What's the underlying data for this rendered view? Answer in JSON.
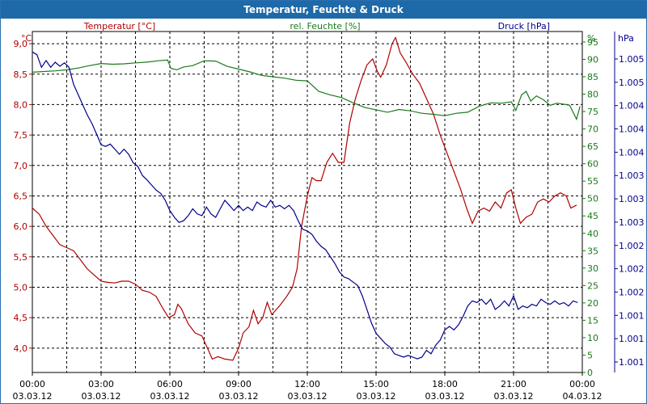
{
  "window": {
    "title": "Temperatur, Feuchte & Druck"
  },
  "chart_data": {
    "type": "line",
    "title": "Temperatur, Feuchte & Druck",
    "colors": {
      "temperature": "#b00000",
      "humidity": "#1a7a1a",
      "pressure": "#00008b"
    },
    "x_ticks": [
      {
        "time": "00:00",
        "date": "03.03.12"
      },
      {
        "time": "03:00",
        "date": "03.03.12"
      },
      {
        "time": "06:00",
        "date": "03.03.12"
      },
      {
        "time": "09:00",
        "date": "03.03.12"
      },
      {
        "time": "12:00",
        "date": "03.03.12"
      },
      {
        "time": "15:00",
        "date": "03.03.12"
      },
      {
        "time": "18:00",
        "date": "03.03.12"
      },
      {
        "time": "21:00",
        "date": "03.03.12"
      },
      {
        "time": "00:00",
        "date": "04.03.12"
      }
    ],
    "x_range_hours": [
      0,
      24
    ],
    "axes": {
      "temperature": {
        "unit": "°C",
        "ticks": [
          "9,0",
          "8,5",
          "8,0",
          "7,5",
          "7,0",
          "6,5",
          "6,0",
          "5,5",
          "5,0",
          "4,5",
          "4,0"
        ]
      },
      "humidity": {
        "unit": "%",
        "ticks": [
          "95",
          "90",
          "85",
          "80",
          "75",
          "70",
          "65",
          "60",
          "55",
          "50",
          "45",
          "40",
          "35",
          "30",
          "25",
          "20",
          "15",
          "10",
          "5",
          "0"
        ]
      },
      "pressure": {
        "unit": "hPa",
        "ticks": [
          "1.005",
          "1.005",
          "1.004",
          "1.004",
          "1.004",
          "1.003",
          "1.003",
          "1.003",
          "1.002",
          "1.002",
          "1.002",
          "1.001",
          "1.001",
          "1.001"
        ]
      }
    },
    "series": [
      {
        "name": "Temperatur [°C]",
        "axis": "temperature",
        "ylim": [
          3.6,
          9.2
        ],
        "points": [
          [
            0,
            6.3
          ],
          [
            0.3,
            6.2
          ],
          [
            0.6,
            6.0
          ],
          [
            0.9,
            5.85
          ],
          [
            1.2,
            5.7
          ],
          [
            1.5,
            5.65
          ],
          [
            1.8,
            5.6
          ],
          [
            2.1,
            5.45
          ],
          [
            2.4,
            5.3
          ],
          [
            2.7,
            5.2
          ],
          [
            3.0,
            5.1
          ],
          [
            3.3,
            5.08
          ],
          [
            3.6,
            5.07
          ],
          [
            3.9,
            5.1
          ],
          [
            4.2,
            5.1
          ],
          [
            4.5,
            5.05
          ],
          [
            4.8,
            4.95
          ],
          [
            5.1,
            4.92
          ],
          [
            5.4,
            4.85
          ],
          [
            5.7,
            4.65
          ],
          [
            5.95,
            4.5
          ],
          [
            6.2,
            4.55
          ],
          [
            6.35,
            4.72
          ],
          [
            6.5,
            4.65
          ],
          [
            6.8,
            4.4
          ],
          [
            7.1,
            4.25
          ],
          [
            7.4,
            4.2
          ],
          [
            7.7,
            3.95
          ],
          [
            7.85,
            3.82
          ],
          [
            8.1,
            3.86
          ],
          [
            8.4,
            3.82
          ],
          [
            8.75,
            3.8
          ],
          [
            9.0,
            4.0
          ],
          [
            9.2,
            4.25
          ],
          [
            9.45,
            4.35
          ],
          [
            9.65,
            4.62
          ],
          [
            9.85,
            4.4
          ],
          [
            10.05,
            4.5
          ],
          [
            10.25,
            4.75
          ],
          [
            10.45,
            4.55
          ],
          [
            10.8,
            4.7
          ],
          [
            11.1,
            4.85
          ],
          [
            11.35,
            5.0
          ],
          [
            11.55,
            5.3
          ],
          [
            11.75,
            6.0
          ],
          [
            12.0,
            6.5
          ],
          [
            12.2,
            6.8
          ],
          [
            12.4,
            6.75
          ],
          [
            12.6,
            6.75
          ],
          [
            12.85,
            7.05
          ],
          [
            13.1,
            7.2
          ],
          [
            13.35,
            7.05
          ],
          [
            13.6,
            7.05
          ],
          [
            13.85,
            7.7
          ],
          [
            14.1,
            8.1
          ],
          [
            14.35,
            8.4
          ],
          [
            14.6,
            8.65
          ],
          [
            14.85,
            8.75
          ],
          [
            15.05,
            8.55
          ],
          [
            15.2,
            8.45
          ],
          [
            15.45,
            8.65
          ],
          [
            15.7,
            9.0
          ],
          [
            15.85,
            9.1
          ],
          [
            16.05,
            8.85
          ],
          [
            16.3,
            8.7
          ],
          [
            16.6,
            8.5
          ],
          [
            16.9,
            8.35
          ],
          [
            17.2,
            8.1
          ],
          [
            17.5,
            7.85
          ],
          [
            17.8,
            7.5
          ],
          [
            18.1,
            7.2
          ],
          [
            18.4,
            6.9
          ],
          [
            18.7,
            6.6
          ],
          [
            18.95,
            6.3
          ],
          [
            19.2,
            6.05
          ],
          [
            19.45,
            6.25
          ],
          [
            19.7,
            6.3
          ],
          [
            19.95,
            6.25
          ],
          [
            20.2,
            6.4
          ],
          [
            20.45,
            6.3
          ],
          [
            20.7,
            6.55
          ],
          [
            20.9,
            6.6
          ],
          [
            21.1,
            6.3
          ],
          [
            21.3,
            6.05
          ],
          [
            21.55,
            6.15
          ],
          [
            21.8,
            6.2
          ],
          [
            22.05,
            6.4
          ],
          [
            22.3,
            6.45
          ],
          [
            22.55,
            6.4
          ],
          [
            22.8,
            6.5
          ],
          [
            23.05,
            6.55
          ],
          [
            23.3,
            6.5
          ],
          [
            23.5,
            6.3
          ],
          [
            23.75,
            6.35
          ]
        ]
      },
      {
        "name": "rel. Feuchte [%]",
        "axis": "humidity",
        "ylim": [
          0,
          98
        ],
        "points": [
          [
            0,
            86.3
          ],
          [
            0.5,
            86.5
          ],
          [
            1.0,
            86.7
          ],
          [
            1.5,
            87.0
          ],
          [
            2.0,
            87.5
          ],
          [
            2.5,
            88.2
          ],
          [
            3.0,
            88.8
          ],
          [
            3.5,
            88.6
          ],
          [
            4.0,
            88.7
          ],
          [
            4.5,
            89.0
          ],
          [
            5.0,
            89.2
          ],
          [
            5.5,
            89.6
          ],
          [
            5.9,
            89.8
          ],
          [
            6.05,
            87.4
          ],
          [
            6.3,
            87.0
          ],
          [
            6.6,
            87.8
          ],
          [
            7.0,
            88.2
          ],
          [
            7.5,
            89.6
          ],
          [
            8.0,
            89.5
          ],
          [
            8.5,
            88.0
          ],
          [
            9.0,
            87.2
          ],
          [
            9.5,
            86.4
          ],
          [
            10.0,
            85.4
          ],
          [
            10.5,
            85.0
          ],
          [
            11.0,
            84.6
          ],
          [
            11.5,
            84.0
          ],
          [
            12.0,
            83.8
          ],
          [
            12.5,
            80.8
          ],
          [
            13.0,
            79.8
          ],
          [
            13.5,
            79.0
          ],
          [
            14.0,
            77.5
          ],
          [
            14.5,
            76.2
          ],
          [
            15.0,
            75.5
          ],
          [
            15.5,
            74.8
          ],
          [
            16.0,
            75.6
          ],
          [
            16.5,
            75.2
          ],
          [
            17.0,
            74.5
          ],
          [
            17.5,
            74.2
          ],
          [
            18.0,
            73.8
          ],
          [
            18.5,
            74.5
          ],
          [
            19.0,
            74.8
          ],
          [
            19.5,
            76.5
          ],
          [
            20.0,
            77.5
          ],
          [
            20.5,
            77.4
          ],
          [
            20.9,
            77.8
          ],
          [
            21.1,
            75.3
          ],
          [
            21.35,
            79.8
          ],
          [
            21.55,
            80.8
          ],
          [
            21.75,
            78.0
          ],
          [
            22.0,
            79.5
          ],
          [
            22.3,
            78.4
          ],
          [
            22.6,
            76.8
          ],
          [
            22.9,
            77.4
          ],
          [
            23.2,
            77.1
          ],
          [
            23.45,
            76.8
          ],
          [
            23.75,
            72.8
          ],
          [
            23.9,
            76.5
          ]
        ]
      },
      {
        "name": "Druck [hPa]",
        "axis": "pressure",
        "ylim": [
          0,
          100
        ],
        "points": [
          [
            0,
            94.0
          ],
          [
            0.2,
            93.2
          ],
          [
            0.4,
            89.5
          ],
          [
            0.6,
            91.5
          ],
          [
            0.8,
            89.5
          ],
          [
            1.0,
            91.0
          ],
          [
            1.2,
            89.8
          ],
          [
            1.4,
            90.8
          ],
          [
            1.6,
            89.5
          ],
          [
            1.8,
            84.5
          ],
          [
            2.0,
            81.5
          ],
          [
            2.2,
            78.5
          ],
          [
            2.4,
            75.5
          ],
          [
            2.6,
            73.0
          ],
          [
            2.8,
            70.0
          ],
          [
            3.0,
            66.8
          ],
          [
            3.2,
            66.3
          ],
          [
            3.4,
            67.0
          ],
          [
            3.6,
            65.5
          ],
          [
            3.8,
            64.0
          ],
          [
            4.0,
            65.5
          ],
          [
            4.2,
            64.0
          ],
          [
            4.4,
            61.5
          ],
          [
            4.6,
            60.5
          ],
          [
            4.8,
            57.8
          ],
          [
            5.0,
            56.5
          ],
          [
            5.2,
            55.0
          ],
          [
            5.4,
            53.5
          ],
          [
            5.6,
            52.5
          ],
          [
            5.8,
            50.5
          ],
          [
            6.0,
            47.5
          ],
          [
            6.2,
            45.5
          ],
          [
            6.4,
            44.0
          ],
          [
            6.6,
            44.5
          ],
          [
            6.8,
            46.0
          ],
          [
            7.0,
            48.0
          ],
          [
            7.2,
            46.5
          ],
          [
            7.4,
            46.0
          ],
          [
            7.6,
            48.5
          ],
          [
            7.8,
            46.5
          ],
          [
            8.0,
            45.5
          ],
          [
            8.2,
            48.0
          ],
          [
            8.4,
            50.5
          ],
          [
            8.6,
            49.0
          ],
          [
            8.8,
            47.5
          ],
          [
            9.0,
            49.0
          ],
          [
            9.2,
            47.5
          ],
          [
            9.4,
            48.5
          ],
          [
            9.6,
            47.5
          ],
          [
            9.8,
            50.0
          ],
          [
            10.0,
            49.0
          ],
          [
            10.2,
            48.5
          ],
          [
            10.4,
            50.5
          ],
          [
            10.6,
            48.5
          ],
          [
            10.8,
            49.0
          ],
          [
            11.0,
            48.0
          ],
          [
            11.2,
            49.0
          ],
          [
            11.4,
            47.5
          ],
          [
            11.6,
            44.5
          ],
          [
            11.8,
            42.0
          ],
          [
            12.0,
            41.5
          ],
          [
            12.2,
            40.5
          ],
          [
            12.4,
            38.5
          ],
          [
            12.6,
            37.0
          ],
          [
            12.8,
            36.0
          ],
          [
            13.0,
            34.0
          ],
          [
            13.2,
            32.0
          ],
          [
            13.4,
            29.5
          ],
          [
            13.6,
            28.0
          ],
          [
            13.8,
            27.5
          ],
          [
            14.0,
            26.5
          ],
          [
            14.2,
            25.5
          ],
          [
            14.4,
            22.5
          ],
          [
            14.6,
            18.5
          ],
          [
            14.8,
            14.5
          ],
          [
            15.0,
            11.5
          ],
          [
            15.2,
            10.0
          ],
          [
            15.4,
            8.5
          ],
          [
            15.6,
            7.5
          ],
          [
            15.8,
            5.5
          ],
          [
            16.0,
            5.0
          ],
          [
            16.2,
            4.5
          ],
          [
            16.4,
            5.0
          ],
          [
            16.6,
            4.5
          ],
          [
            16.8,
            4.0
          ],
          [
            17.0,
            4.5
          ],
          [
            17.2,
            6.5
          ],
          [
            17.4,
            5.5
          ],
          [
            17.6,
            8.0
          ],
          [
            17.8,
            9.5
          ],
          [
            18.0,
            12.5
          ],
          [
            18.2,
            13.5
          ],
          [
            18.4,
            12.5
          ],
          [
            18.6,
            14.0
          ],
          [
            18.8,
            16.5
          ],
          [
            19.0,
            19.5
          ],
          [
            19.2,
            21.0
          ],
          [
            19.4,
            20.5
          ],
          [
            19.6,
            21.5
          ],
          [
            19.8,
            20.0
          ],
          [
            20.0,
            21.5
          ],
          [
            20.2,
            18.5
          ],
          [
            20.4,
            19.5
          ],
          [
            20.6,
            21.0
          ],
          [
            20.8,
            19.5
          ],
          [
            21.0,
            22.5
          ],
          [
            21.2,
            18.5
          ],
          [
            21.4,
            19.5
          ],
          [
            21.6,
            19.0
          ],
          [
            21.8,
            20.0
          ],
          [
            22.0,
            19.5
          ],
          [
            22.2,
            21.5
          ],
          [
            22.4,
            20.5
          ],
          [
            22.6,
            20.0
          ],
          [
            22.8,
            21.0
          ],
          [
            23.0,
            20.0
          ],
          [
            23.2,
            20.5
          ],
          [
            23.4,
            19.5
          ],
          [
            23.6,
            21.0
          ],
          [
            23.8,
            20.5
          ]
        ]
      }
    ],
    "grid": true
  }
}
